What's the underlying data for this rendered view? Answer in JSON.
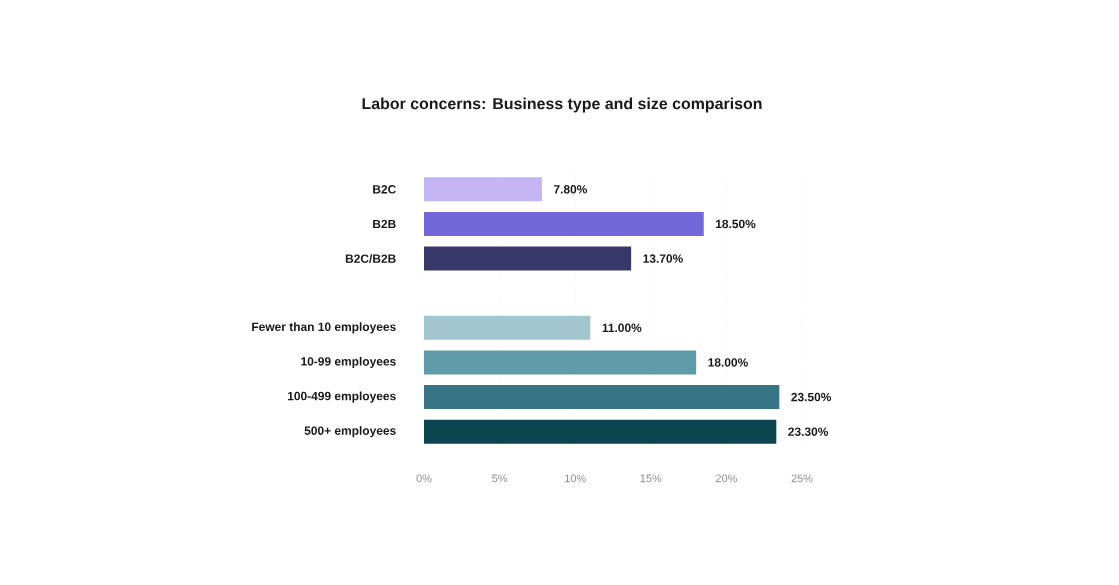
{
  "chart_data": {
    "type": "bar",
    "orientation": "horizontal",
    "title": "Labor concerns: Business type and size comparison",
    "categories": [
      "B2C",
      "B2B",
      "B2C/B2B",
      null,
      "Fewer than 10 employees",
      "10-99 employees",
      "100-499 employees",
      "500+ employees"
    ],
    "values": [
      7.8,
      18.5,
      13.7,
      null,
      11.0,
      18.0,
      23.5,
      23.3
    ],
    "value_labels": [
      "7.80%",
      "18.50%",
      "13.70%",
      null,
      "11.00%",
      "18.00%",
      "23.50%",
      "23.30%"
    ],
    "colors": [
      "#c5b5f5",
      "#7367d9",
      "#39386a",
      null,
      "#a3c5cf",
      "#5f9aa9",
      "#377486",
      "#0a4550"
    ],
    "xlim": [
      0,
      25
    ],
    "xticks": [
      {
        "value": 0,
        "label": "0%"
      },
      {
        "value": 5,
        "label": "5%"
      },
      {
        "value": 10,
        "label": "10%"
      },
      {
        "value": 15,
        "label": "15%"
      },
      {
        "value": 20,
        "label": "20%"
      },
      {
        "value": 25,
        "label": "25%"
      }
    ],
    "grid": "x"
  }
}
